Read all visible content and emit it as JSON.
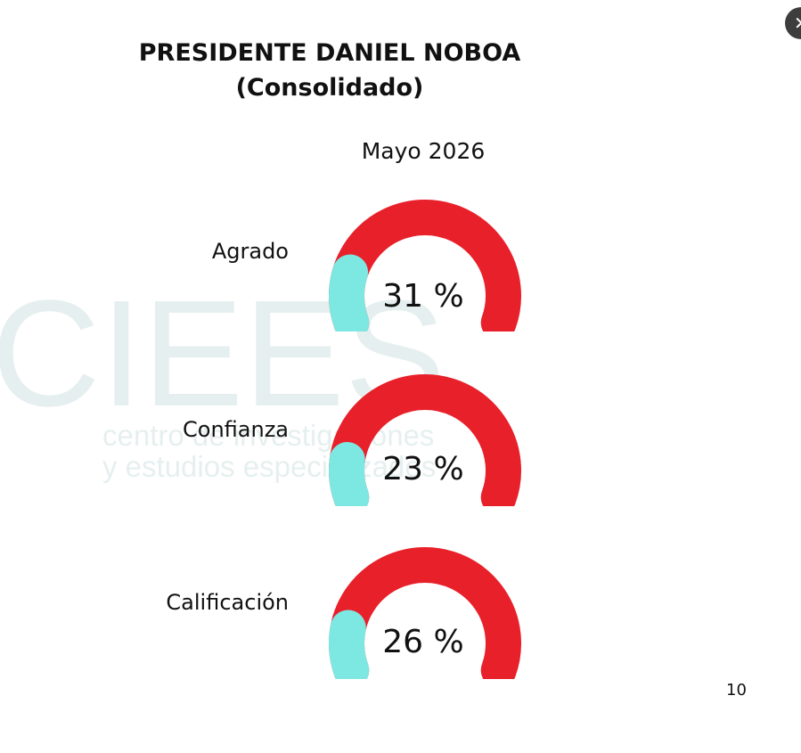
{
  "title_line1": "PRESIDENTE DANIEL  NOBOA",
  "title_line2": "(Consolidado)",
  "subtitle": "Mayo 2026",
  "page_number": "10",
  "watermark": {
    "logo": "CIEES",
    "line1": "centro de investigaciones",
    "line2": "y estudios especializados"
  },
  "close_icon": "close-icon",
  "colors": {
    "gauge_track": "#E8202A",
    "gauge_fill": "#7DE8E2",
    "text": "#111111",
    "watermark": "#e6efef"
  },
  "chart_data": {
    "type": "gauge",
    "title": "Mayo 2026",
    "max": 100,
    "items": [
      {
        "label": "Agrado",
        "value": 31,
        "display": "31 %"
      },
      {
        "label": "Confianza",
        "value": 23,
        "display": "23 %"
      },
      {
        "label": "Calificación",
        "value": 26,
        "display": "26 %"
      }
    ]
  }
}
